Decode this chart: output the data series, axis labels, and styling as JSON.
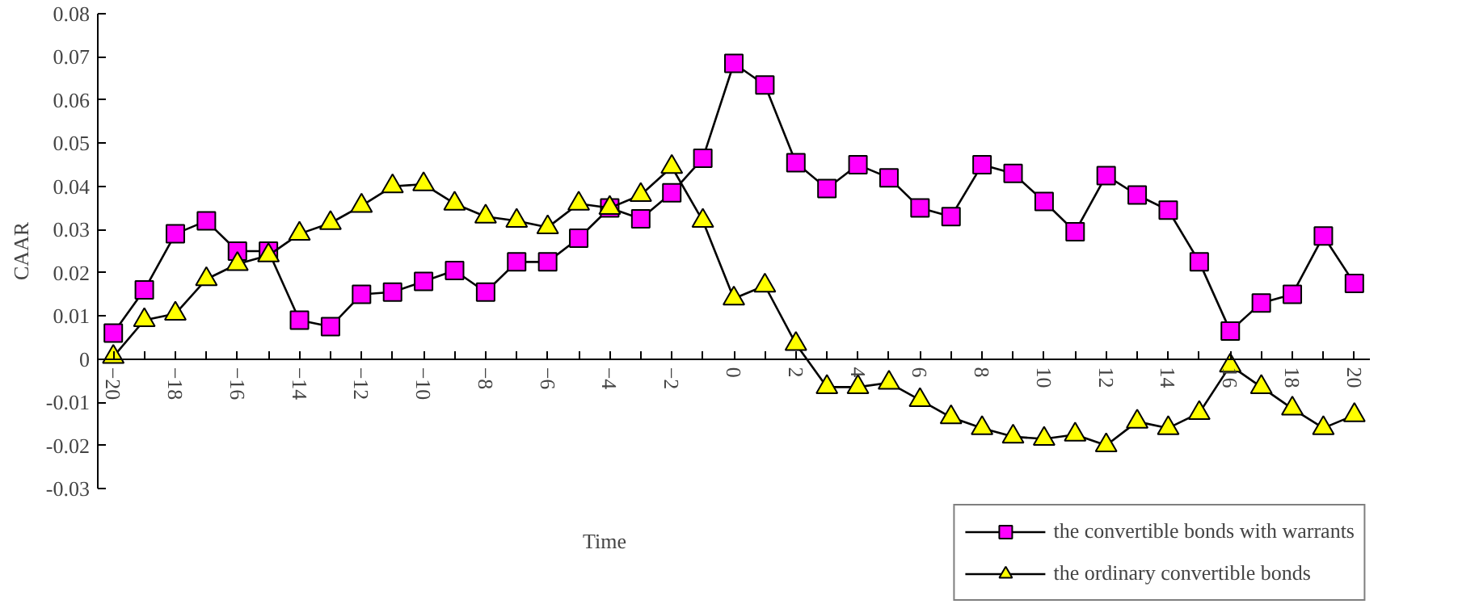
{
  "chart_data": {
    "type": "line",
    "xlabel": "Time",
    "ylabel": "CAAR",
    "x": [
      -20,
      -19,
      -18,
      -17,
      -16,
      -15,
      -14,
      -13,
      -12,
      -11,
      -10,
      -9,
      -8,
      -7,
      -6,
      -5,
      -4,
      -3,
      -2,
      -1,
      0,
      1,
      2,
      3,
      4,
      5,
      6,
      7,
      8,
      9,
      10,
      11,
      12,
      13,
      14,
      15,
      16,
      17,
      18,
      19,
      20
    ],
    "series": [
      {
        "name": "the convertible bonds with warrants",
        "color": "#ff00ff",
        "marker": "square",
        "values": [
          0.006,
          0.016,
          0.029,
          0.032,
          0.025,
          0.025,
          0.009,
          0.0075,
          0.015,
          0.0155,
          0.018,
          0.0205,
          0.0155,
          0.0225,
          0.0225,
          0.028,
          0.035,
          0.0325,
          0.0385,
          0.0465,
          0.0685,
          0.0635,
          0.0455,
          0.0395,
          0.045,
          0.042,
          0.035,
          0.033,
          0.045,
          0.043,
          0.0365,
          0.0295,
          0.0425,
          0.038,
          0.0345,
          0.0225,
          0.0065,
          0.013,
          0.015,
          0.0285,
          0.0175
        ]
      },
      {
        "name": "the ordinary convertible bonds",
        "color": "#ffff00",
        "marker": "triangle",
        "values": [
          0.0005,
          0.009,
          0.0105,
          0.0185,
          0.022,
          0.024,
          0.029,
          0.0315,
          0.0355,
          0.04,
          0.0405,
          0.036,
          0.033,
          0.032,
          0.0305,
          0.036,
          0.035,
          0.038,
          0.0445,
          0.032,
          0.014,
          0.017,
          0.0035,
          -0.0065,
          -0.0065,
          -0.0055,
          -0.0095,
          -0.0135,
          -0.016,
          -0.018,
          -0.0185,
          -0.0175,
          -0.02,
          -0.0145,
          -0.016,
          -0.0125,
          -0.0015,
          -0.0065,
          -0.0115,
          -0.016,
          -0.013
        ]
      }
    ],
    "xlim": [
      -20.5,
      20.5
    ],
    "xticks": [
      -20,
      -18,
      -16,
      -14,
      -12,
      -10,
      -8,
      -6,
      -4,
      -2,
      0,
      2,
      4,
      6,
      8,
      10,
      12,
      14,
      16,
      18,
      20
    ],
    "ylim": [
      -0.03,
      0.08
    ],
    "yticks": [
      -0.03,
      -0.02,
      -0.01,
      0,
      0.01,
      0.02,
      0.03,
      0.04,
      0.05,
      0.06,
      0.07,
      0.08
    ],
    "grid": false,
    "legend": "bottom right",
    "line_style": "solid"
  }
}
